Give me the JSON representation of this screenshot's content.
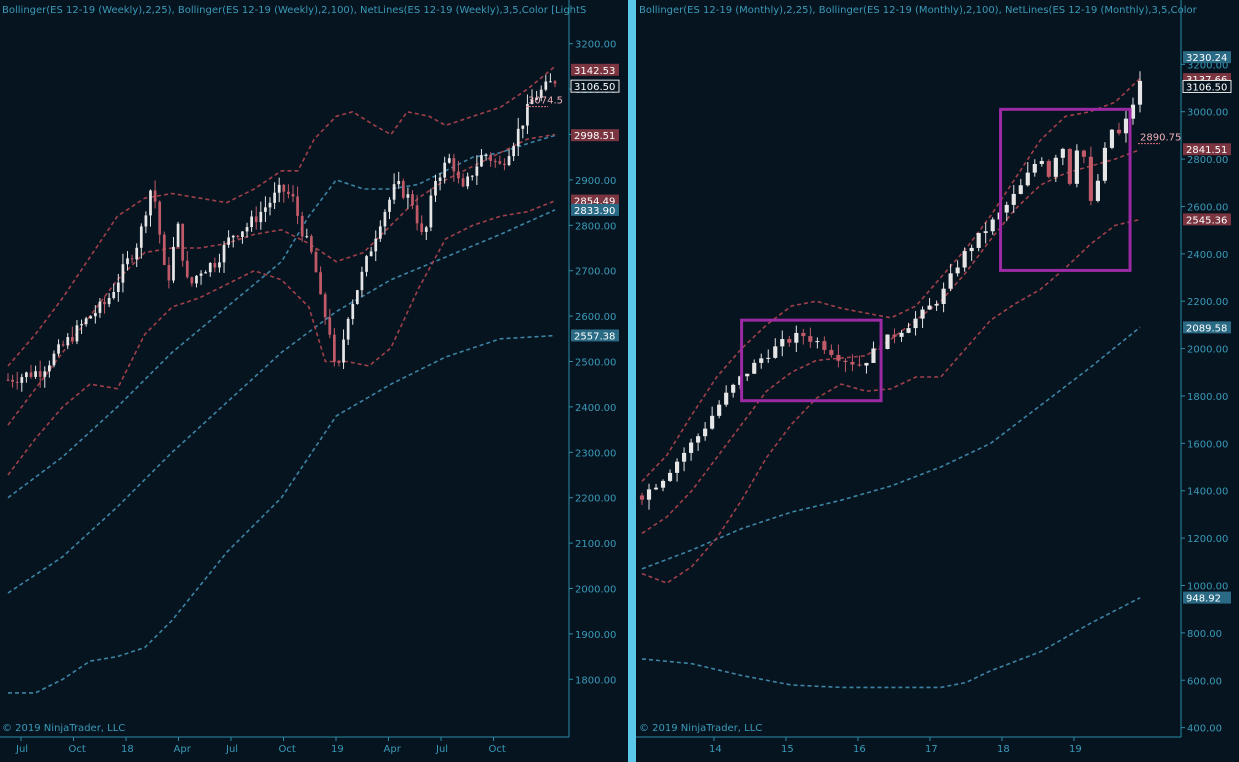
{
  "colors": {
    "background": "#061420",
    "divider": "#5bc8ea",
    "axis": "#2a8ca6",
    "text": "#3a9ab8",
    "bollinger25": "#a0404a",
    "bollinger100": "#3d84a4",
    "candle_up": "#e6e6e6",
    "candle_down": "#c05a68",
    "box": "#9c2aa4",
    "label_red": "#7a3540",
    "label_blue": "#2a6a85"
  },
  "left": {
    "title": "Bollinger(ES 12-19 (Weekly),2,25), Bollinger(ES 12-19 (Weekly),2,100), NetLines(ES 12-19 (Weekly),3,5,Color [LightS",
    "copyright": "© 2019 NinjaTrader, LLC",
    "yticks": [
      "3200.00",
      "3100.00",
      "3000.00",
      "2900.00",
      "2800.00",
      "2700.00",
      "2600.00",
      "2500.00",
      "2400.00",
      "2300.00",
      "2200.00",
      "2100.00",
      "2000.00",
      "1900.00",
      "1800.00"
    ],
    "xticks": [
      "Jul",
      "Oct",
      "18",
      "Apr",
      "Jul",
      "Oct",
      "19",
      "Apr",
      "Jul",
      "Oct"
    ],
    "price_labels": [
      "3142.53",
      "3106.50",
      "2998.51",
      "2854.49",
      "2833.90",
      "2557.38"
    ],
    "netline_label": "3074.5"
  },
  "right": {
    "title": "Bollinger(ES 12-19 (Monthly),2,25), Bollinger(ES 12-19 (Monthly),2,100), NetLines(ES 12-19 (Monthly),3,5,Color",
    "copyright": "© 2019 NinjaTrader, LLC",
    "yticks": [
      "3200.00",
      "3000.00",
      "2800.00",
      "2600.00",
      "2400.00",
      "2200.00",
      "2000.00",
      "1800.00",
      "1600.00",
      "1400.00",
      "1200.00",
      "1000.00",
      "800.00",
      "600.00",
      "400.00"
    ],
    "xticks": [
      "14",
      "15",
      "16",
      "17",
      "18",
      "19"
    ],
    "price_labels": [
      "3230.24",
      "3137.66",
      "3106.50",
      "2841.51",
      "2545.36",
      "2089.58",
      "948.92"
    ],
    "netline_label": "2890.75"
  },
  "chart_data": [
    {
      "type": "candlestick",
      "title": "Bollinger(ES 12-19 (Weekly),2,25), Bollinger(ES 12-19 (Weekly),2,100), NetLines(ES 12-19 (Weekly),3,5,Color [LightS",
      "ylim": [
        1750,
        3250
      ],
      "x_ticks": [
        "Jul",
        "Oct",
        "18",
        "Apr",
        "Jul",
        "Oct",
        "19",
        "Apr",
        "Jul",
        "Oct"
      ],
      "close_path": [
        [
          0,
          2460
        ],
        [
          0.03,
          2470
        ],
        [
          0.06,
          2480
        ],
        [
          0.09,
          2520
        ],
        [
          0.12,
          2560
        ],
        [
          0.15,
          2600
        ],
        [
          0.18,
          2630
        ],
        [
          0.21,
          2700
        ],
        [
          0.24,
          2770
        ],
        [
          0.26,
          2880
        ],
        [
          0.27,
          2850
        ],
        [
          0.29,
          2660
        ],
        [
          0.31,
          2800
        ],
        [
          0.33,
          2660
        ],
        [
          0.35,
          2700
        ],
        [
          0.38,
          2720
        ],
        [
          0.41,
          2780
        ],
        [
          0.44,
          2800
        ],
        [
          0.47,
          2840
        ],
        [
          0.5,
          2880
        ],
        [
          0.52,
          2860
        ],
        [
          0.54,
          2780
        ],
        [
          0.56,
          2720
        ],
        [
          0.57,
          2640
        ],
        [
          0.59,
          2560
        ],
        [
          0.6,
          2450
        ],
        [
          0.62,
          2600
        ],
        [
          0.65,
          2700
        ],
        [
          0.68,
          2810
        ],
        [
          0.71,
          2890
        ],
        [
          0.74,
          2850
        ],
        [
          0.76,
          2760
        ],
        [
          0.78,
          2900
        ],
        [
          0.81,
          2950
        ],
        [
          0.83,
          2870
        ],
        [
          0.85,
          2920
        ],
        [
          0.87,
          2960
        ],
        [
          0.9,
          2930
        ],
        [
          0.93,
          3000
        ],
        [
          0.96,
          3080
        ],
        [
          1.0,
          3120
        ]
      ],
      "bollinger25_upper": [
        [
          0,
          2490
        ],
        [
          0.05,
          2560
        ],
        [
          0.1,
          2640
        ],
        [
          0.15,
          2730
        ],
        [
          0.2,
          2820
        ],
        [
          0.25,
          2860
        ],
        [
          0.3,
          2870
        ],
        [
          0.35,
          2860
        ],
        [
          0.4,
          2850
        ],
        [
          0.45,
          2880
        ],
        [
          0.5,
          2920
        ],
        [
          0.53,
          2920
        ],
        [
          0.56,
          2990
        ],
        [
          0.6,
          3040
        ],
        [
          0.63,
          3050
        ],
        [
          0.67,
          3020
        ],
        [
          0.7,
          3000
        ],
        [
          0.73,
          3050
        ],
        [
          0.77,
          3040
        ],
        [
          0.8,
          3020
        ],
        [
          0.85,
          3040
        ],
        [
          0.9,
          3060
        ],
        [
          0.95,
          3100
        ],
        [
          1.0,
          3150
        ]
      ],
      "bollinger25_mid": [
        [
          0,
          2360
        ],
        [
          0.05,
          2440
        ],
        [
          0.1,
          2520
        ],
        [
          0.15,
          2600
        ],
        [
          0.2,
          2680
        ],
        [
          0.25,
          2740
        ],
        [
          0.3,
          2750
        ],
        [
          0.35,
          2750
        ],
        [
          0.4,
          2760
        ],
        [
          0.45,
          2780
        ],
        [
          0.5,
          2790
        ],
        [
          0.55,
          2760
        ],
        [
          0.6,
          2720
        ],
        [
          0.65,
          2740
        ],
        [
          0.7,
          2800
        ],
        [
          0.75,
          2860
        ],
        [
          0.8,
          2900
        ],
        [
          0.85,
          2930
        ],
        [
          0.9,
          2960
        ],
        [
          0.95,
          2990
        ],
        [
          1.0,
          3000
        ]
      ],
      "bollinger25_lower": [
        [
          0,
          2250
        ],
        [
          0.05,
          2330
        ],
        [
          0.1,
          2400
        ],
        [
          0.15,
          2450
        ],
        [
          0.2,
          2440
        ],
        [
          0.25,
          2560
        ],
        [
          0.3,
          2620
        ],
        [
          0.35,
          2640
        ],
        [
          0.4,
          2670
        ],
        [
          0.45,
          2700
        ],
        [
          0.5,
          2680
        ],
        [
          0.55,
          2620
        ],
        [
          0.58,
          2500
        ],
        [
          0.62,
          2500
        ],
        [
          0.66,
          2490
        ],
        [
          0.7,
          2530
        ],
        [
          0.75,
          2660
        ],
        [
          0.8,
          2770
        ],
        [
          0.85,
          2800
        ],
        [
          0.9,
          2820
        ],
        [
          0.95,
          2830
        ],
        [
          1.0,
          2854
        ]
      ],
      "bollinger100_upper": [
        [
          0,
          2200
        ],
        [
          0.1,
          2290
        ],
        [
          0.2,
          2400
        ],
        [
          0.3,
          2520
        ],
        [
          0.4,
          2620
        ],
        [
          0.45,
          2670
        ],
        [
          0.5,
          2720
        ],
        [
          0.55,
          2820
        ],
        [
          0.6,
          2900
        ],
        [
          0.65,
          2880
        ],
        [
          0.7,
          2880
        ],
        [
          0.75,
          2890
        ],
        [
          0.8,
          2920
        ],
        [
          0.85,
          2950
        ],
        [
          0.9,
          2960
        ],
        [
          0.95,
          2980
        ],
        [
          1.0,
          2998
        ]
      ],
      "bollinger100_mid": [
        [
          0,
          1990
        ],
        [
          0.1,
          2070
        ],
        [
          0.2,
          2180
        ],
        [
          0.3,
          2300
        ],
        [
          0.4,
          2410
        ],
        [
          0.5,
          2520
        ],
        [
          0.6,
          2610
        ],
        [
          0.7,
          2680
        ],
        [
          0.8,
          2730
        ],
        [
          0.9,
          2780
        ],
        [
          1.0,
          2834
        ]
      ],
      "bollinger100_lower": [
        [
          0,
          1770
        ],
        [
          0.05,
          1770
        ],
        [
          0.1,
          1800
        ],
        [
          0.15,
          1840
        ],
        [
          0.2,
          1850
        ],
        [
          0.25,
          1870
        ],
        [
          0.3,
          1930
        ],
        [
          0.4,
          2080
        ],
        [
          0.5,
          2200
        ],
        [
          0.55,
          2290
        ],
        [
          0.6,
          2380
        ],
        [
          0.7,
          2450
        ],
        [
          0.8,
          2510
        ],
        [
          0.9,
          2550
        ],
        [
          1.0,
          2557
        ]
      ]
    },
    {
      "type": "candlestick",
      "title": "Bollinger(ES 12-19 (Monthly),2,25), Bollinger(ES 12-19 (Monthly),2,100), NetLines(ES 12-19 (Monthly),3,5,Color",
      "ylim": [
        390,
        3290
      ],
      "x_ticks": [
        "14",
        "15",
        "16",
        "17",
        "18",
        "19"
      ],
      "close_path": [
        [
          0,
          1380
        ],
        [
          0.04,
          1450
        ],
        [
          0.08,
          1550
        ],
        [
          0.12,
          1650
        ],
        [
          0.16,
          1780
        ],
        [
          0.2,
          1880
        ],
        [
          0.24,
          1960
        ],
        [
          0.28,
          2020
        ],
        [
          0.32,
          2060
        ],
        [
          0.36,
          2020
        ],
        [
          0.4,
          1960
        ],
        [
          0.44,
          1930
        ],
        [
          0.48,
          2020
        ],
        [
          0.52,
          2080
        ],
        [
          0.56,
          2140
        ],
        [
          0.6,
          2220
        ],
        [
          0.64,
          2380
        ],
        [
          0.68,
          2480
        ],
        [
          0.72,
          2570
        ],
        [
          0.76,
          2680
        ],
        [
          0.8,
          2820
        ],
        [
          0.82,
          2720
        ],
        [
          0.84,
          2900
        ],
        [
          0.86,
          2700
        ],
        [
          0.88,
          2930
        ],
        [
          0.9,
          2600
        ],
        [
          0.92,
          2740
        ],
        [
          0.94,
          2930
        ],
        [
          0.96,
          2900
        ],
        [
          0.98,
          3000
        ],
        [
          1.0,
          3120
        ]
      ],
      "bollinger25_upper": [
        [
          0,
          1440
        ],
        [
          0.05,
          1550
        ],
        [
          0.1,
          1720
        ],
        [
          0.15,
          1880
        ],
        [
          0.2,
          2000
        ],
        [
          0.25,
          2100
        ],
        [
          0.3,
          2180
        ],
        [
          0.35,
          2200
        ],
        [
          0.4,
          2170
        ],
        [
          0.45,
          2150
        ],
        [
          0.5,
          2130
        ],
        [
          0.55,
          2180
        ],
        [
          0.6,
          2300
        ],
        [
          0.65,
          2420
        ],
        [
          0.7,
          2560
        ],
        [
          0.75,
          2720
        ],
        [
          0.8,
          2880
        ],
        [
          0.85,
          2980
        ],
        [
          0.9,
          3000
        ],
        [
          0.95,
          3040
        ],
        [
          1.0,
          3140
        ]
      ],
      "bollinger25_mid": [
        [
          0,
          1220
        ],
        [
          0.05,
          1290
        ],
        [
          0.1,
          1400
        ],
        [
          0.15,
          1540
        ],
        [
          0.2,
          1680
        ],
        [
          0.25,
          1820
        ],
        [
          0.3,
          1900
        ],
        [
          0.35,
          1950
        ],
        [
          0.4,
          1960
        ],
        [
          0.45,
          1970
        ],
        [
          0.5,
          2040
        ],
        [
          0.55,
          2120
        ],
        [
          0.6,
          2200
        ],
        [
          0.65,
          2320
        ],
        [
          0.7,
          2460
        ],
        [
          0.75,
          2590
        ],
        [
          0.8,
          2690
        ],
        [
          0.85,
          2740
        ],
        [
          0.9,
          2770
        ],
        [
          0.95,
          2800
        ],
        [
          1.0,
          2840
        ]
      ],
      "bollinger25_lower": [
        [
          0,
          1050
        ],
        [
          0.05,
          1010
        ],
        [
          0.1,
          1080
        ],
        [
          0.15,
          1200
        ],
        [
          0.2,
          1360
        ],
        [
          0.25,
          1540
        ],
        [
          0.3,
          1680
        ],
        [
          0.35,
          1790
        ],
        [
          0.4,
          1850
        ],
        [
          0.45,
          1820
        ],
        [
          0.5,
          1830
        ],
        [
          0.55,
          1880
        ],
        [
          0.6,
          1880
        ],
        [
          0.65,
          2000
        ],
        [
          0.7,
          2120
        ],
        [
          0.75,
          2190
        ],
        [
          0.8,
          2250
        ],
        [
          0.85,
          2340
        ],
        [
          0.9,
          2440
        ],
        [
          0.95,
          2520
        ],
        [
          1.0,
          2545
        ]
      ],
      "bollinger100_upper": [
        [
          0,
          1070
        ],
        [
          0.1,
          1150
        ],
        [
          0.2,
          1240
        ],
        [
          0.3,
          1310
        ],
        [
          0.4,
          1360
        ],
        [
          0.5,
          1420
        ],
        [
          0.6,
          1500
        ],
        [
          0.7,
          1600
        ],
        [
          0.8,
          1760
        ],
        [
          0.9,
          1920
        ],
        [
          1.0,
          2090
        ]
      ],
      "bollinger100_lower": [
        [
          0,
          690
        ],
        [
          0.1,
          670
        ],
        [
          0.2,
          620
        ],
        [
          0.3,
          580
        ],
        [
          0.4,
          570
        ],
        [
          0.5,
          570
        ],
        [
          0.6,
          570
        ],
        [
          0.65,
          590
        ],
        [
          0.7,
          640
        ],
        [
          0.8,
          720
        ],
        [
          0.9,
          840
        ],
        [
          1.0,
          948
        ]
      ],
      "boxes": [
        {
          "x0": 0.2,
          "x1": 0.48,
          "y0": 1780,
          "y1": 2120
        },
        {
          "x0": 0.72,
          "x1": 0.98,
          "y0": 2330,
          "y1": 3010
        }
      ]
    }
  ]
}
